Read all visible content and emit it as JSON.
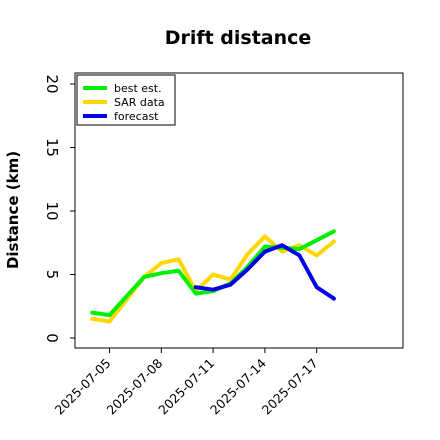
{
  "chart_data": {
    "type": "line",
    "title": "Drift distance",
    "xlabel": "",
    "ylabel": "Distance (km)",
    "ylim": [
      0,
      20
    ],
    "xlim": [
      "2025-07-03",
      "2025-07-22"
    ],
    "yticks": [
      0,
      5,
      10,
      15,
      20
    ],
    "xticks": [
      "2025-07-05",
      "2025-07-08",
      "2025-07-11",
      "2025-07-14",
      "2025-07-17"
    ],
    "grid": false,
    "legend": "top-left",
    "series": [
      {
        "name": "best est.",
        "color": "#00ee00",
        "x": [
          "2025-07-04",
          "2025-07-05",
          "2025-07-07",
          "2025-07-08",
          "2025-07-09",
          "2025-07-10",
          "2025-07-11",
          "2025-07-12",
          "2025-07-13",
          "2025-07-14",
          "2025-07-15",
          "2025-07-16",
          "2025-07-17",
          "2025-07-18"
        ],
        "values": [
          2.0,
          1.8,
          4.8,
          5.1,
          5.3,
          3.5,
          3.7,
          4.3,
          5.6,
          7.2,
          7.1,
          7.0,
          7.7,
          8.4
        ]
      },
      {
        "name": "SAR data",
        "color": "#ffd700",
        "x": [
          "2025-07-04",
          "2025-07-05",
          "2025-07-07",
          "2025-07-08",
          "2025-07-09",
          "2025-07-10",
          "2025-07-11",
          "2025-07-12",
          "2025-07-13",
          "2025-07-14",
          "2025-07-15",
          "2025-07-16",
          "2025-07-17",
          "2025-07-18"
        ],
        "values": [
          1.5,
          1.3,
          4.8,
          5.9,
          6.2,
          3.7,
          5.0,
          4.6,
          6.6,
          8.0,
          6.8,
          7.3,
          6.5,
          7.6
        ]
      },
      {
        "name": "forecast",
        "color": "#0000ee",
        "x": [
          "2025-07-10",
          "2025-07-11",
          "2025-07-12",
          "2025-07-13",
          "2025-07-14",
          "2025-07-15",
          "2025-07-16",
          "2025-07-17",
          "2025-07-18"
        ],
        "values": [
          4.0,
          3.8,
          4.2,
          5.4,
          6.8,
          7.3,
          6.5,
          4.0,
          3.1
        ]
      }
    ]
  }
}
